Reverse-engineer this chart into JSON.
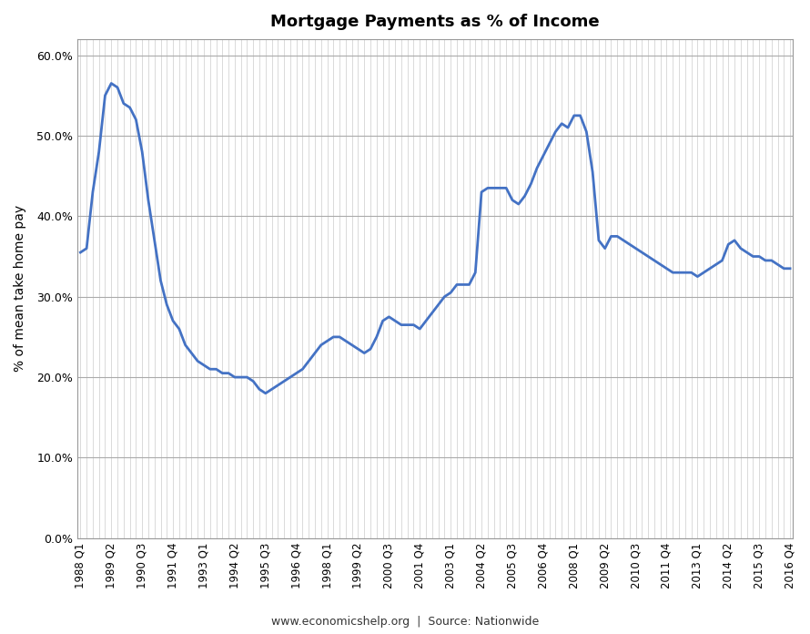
{
  "title": "Mortgage Payments as % of Income",
  "ylabel": "% of mean take home pay",
  "source_text": "www.economicshelp.org  |  Source: Nationwide",
  "line_color": "#4472C4",
  "line_width": 2.0,
  "background_color": "#FFFFFF",
  "grid_color_h": "#AAAAAA",
  "grid_color_v": "#CCCCCC",
  "ylim": [
    0.0,
    0.62
  ],
  "yticks": [
    0.0,
    0.1,
    0.2,
    0.3,
    0.4,
    0.5,
    0.6
  ],
  "ytick_labels": [
    "0.0%",
    "10.0%",
    "20.0%",
    "30.0%",
    "40.0%",
    "50.0%",
    "60.0%"
  ],
  "display_xtick_labels": [
    "1988 Q1",
    "1989 Q2",
    "1990 Q3",
    "1991 Q4",
    "1993 Q1",
    "1994 Q2",
    "1995 Q3",
    "1996 Q4",
    "1998 Q1",
    "1999 Q2",
    "2000 Q3",
    "2001 Q4",
    "2003 Q1",
    "2004 Q2",
    "2005 Q3",
    "2006 Q4",
    "2008 Q1",
    "2009 Q2",
    "2010 Q3",
    "2011 Q4",
    "2013 Q1",
    "2014 Q2",
    "2015 Q3",
    "2016 Q4"
  ],
  "start_year": 1988,
  "end_year": 2016,
  "values_pct": [
    35.5,
    36.0,
    43.0,
    48.0,
    55.0,
    56.5,
    56.0,
    54.0,
    53.5,
    52.0,
    48.0,
    42.0,
    37.0,
    32.0,
    29.0,
    27.0,
    26.0,
    24.0,
    23.0,
    22.0,
    21.5,
    21.0,
    21.0,
    20.5,
    20.5,
    20.0,
    20.0,
    20.0,
    19.5,
    18.5,
    18.0,
    18.5,
    19.0,
    19.5,
    20.0,
    20.5,
    21.0,
    22.0,
    23.0,
    24.0,
    24.5,
    25.0,
    25.0,
    24.5,
    24.0,
    23.5,
    23.0,
    23.5,
    25.0,
    27.0,
    27.5,
    27.0,
    26.5,
    26.5,
    26.5,
    26.0,
    27.0,
    28.0,
    29.0,
    30.0,
    30.5,
    31.5,
    31.5,
    31.5,
    33.0,
    43.0,
    43.5,
    43.5,
    43.5,
    43.5,
    42.0,
    41.5,
    42.5,
    44.0,
    46.0,
    47.5,
    49.0,
    50.5,
    51.5,
    51.0,
    52.5,
    52.5,
    50.5,
    45.5,
    37.0,
    36.0,
    37.5,
    37.5,
    37.0,
    36.5,
    36.0,
    35.5,
    35.0,
    34.5,
    34.0,
    33.5,
    33.0,
    33.0,
    33.0,
    33.0,
    32.5,
    33.0,
    33.5,
    34.0,
    34.5,
    36.5,
    37.0,
    36.0,
    35.5,
    35.0,
    35.0,
    34.5,
    34.5,
    34.0,
    33.5,
    33.5
  ]
}
